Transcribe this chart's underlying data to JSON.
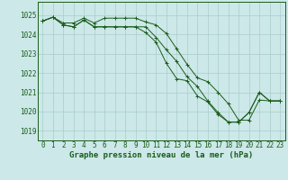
{
  "title": "Graphe pression niveau de la mer (hPa)",
  "bg_color": "#cce8e8",
  "grid_color": "#aacccc",
  "line_color": "#1a5c1a",
  "xlim": [
    -0.5,
    23.5
  ],
  "ylim": [
    1018.5,
    1025.7
  ],
  "yticks": [
    1019,
    1020,
    1021,
    1022,
    1023,
    1024,
    1025
  ],
  "xticks": [
    0,
    1,
    2,
    3,
    4,
    5,
    6,
    7,
    8,
    9,
    10,
    11,
    12,
    13,
    14,
    15,
    16,
    17,
    18,
    19,
    20,
    21,
    22,
    23
  ],
  "series": [
    [
      1024.7,
      1024.9,
      1024.6,
      1024.6,
      1024.85,
      1024.6,
      1024.85,
      1024.85,
      1024.85,
      1024.85,
      1024.65,
      1024.5,
      1024.05,
      1023.25,
      1022.45,
      1021.75,
      1021.55,
      1021.0,
      1020.4,
      1019.55,
      1019.55,
      1020.6,
      1020.55,
      1020.55
    ],
    [
      1024.7,
      1024.9,
      1024.5,
      1024.4,
      1024.75,
      1024.4,
      1024.4,
      1024.4,
      1024.4,
      1024.4,
      1024.1,
      1023.6,
      1022.5,
      1021.7,
      1021.6,
      1020.8,
      1020.5,
      1019.85,
      1019.45,
      1019.45,
      1019.95,
      1021.0,
      1020.55,
      1020.55
    ],
    [
      1024.7,
      1024.9,
      1024.5,
      1024.4,
      1024.75,
      1024.4,
      1024.4,
      1024.4,
      1024.4,
      1024.4,
      1024.4,
      1023.85,
      1023.2,
      1022.6,
      1021.8,
      1021.3,
      1020.55,
      1019.95,
      1019.45,
      1019.45,
      1019.95,
      1021.0,
      1020.55,
      1020.55
    ]
  ],
  "figsize": [
    3.2,
    2.0
  ],
  "dpi": 100,
  "tick_fontsize": 5.5,
  "xlabel_fontsize": 6.5
}
